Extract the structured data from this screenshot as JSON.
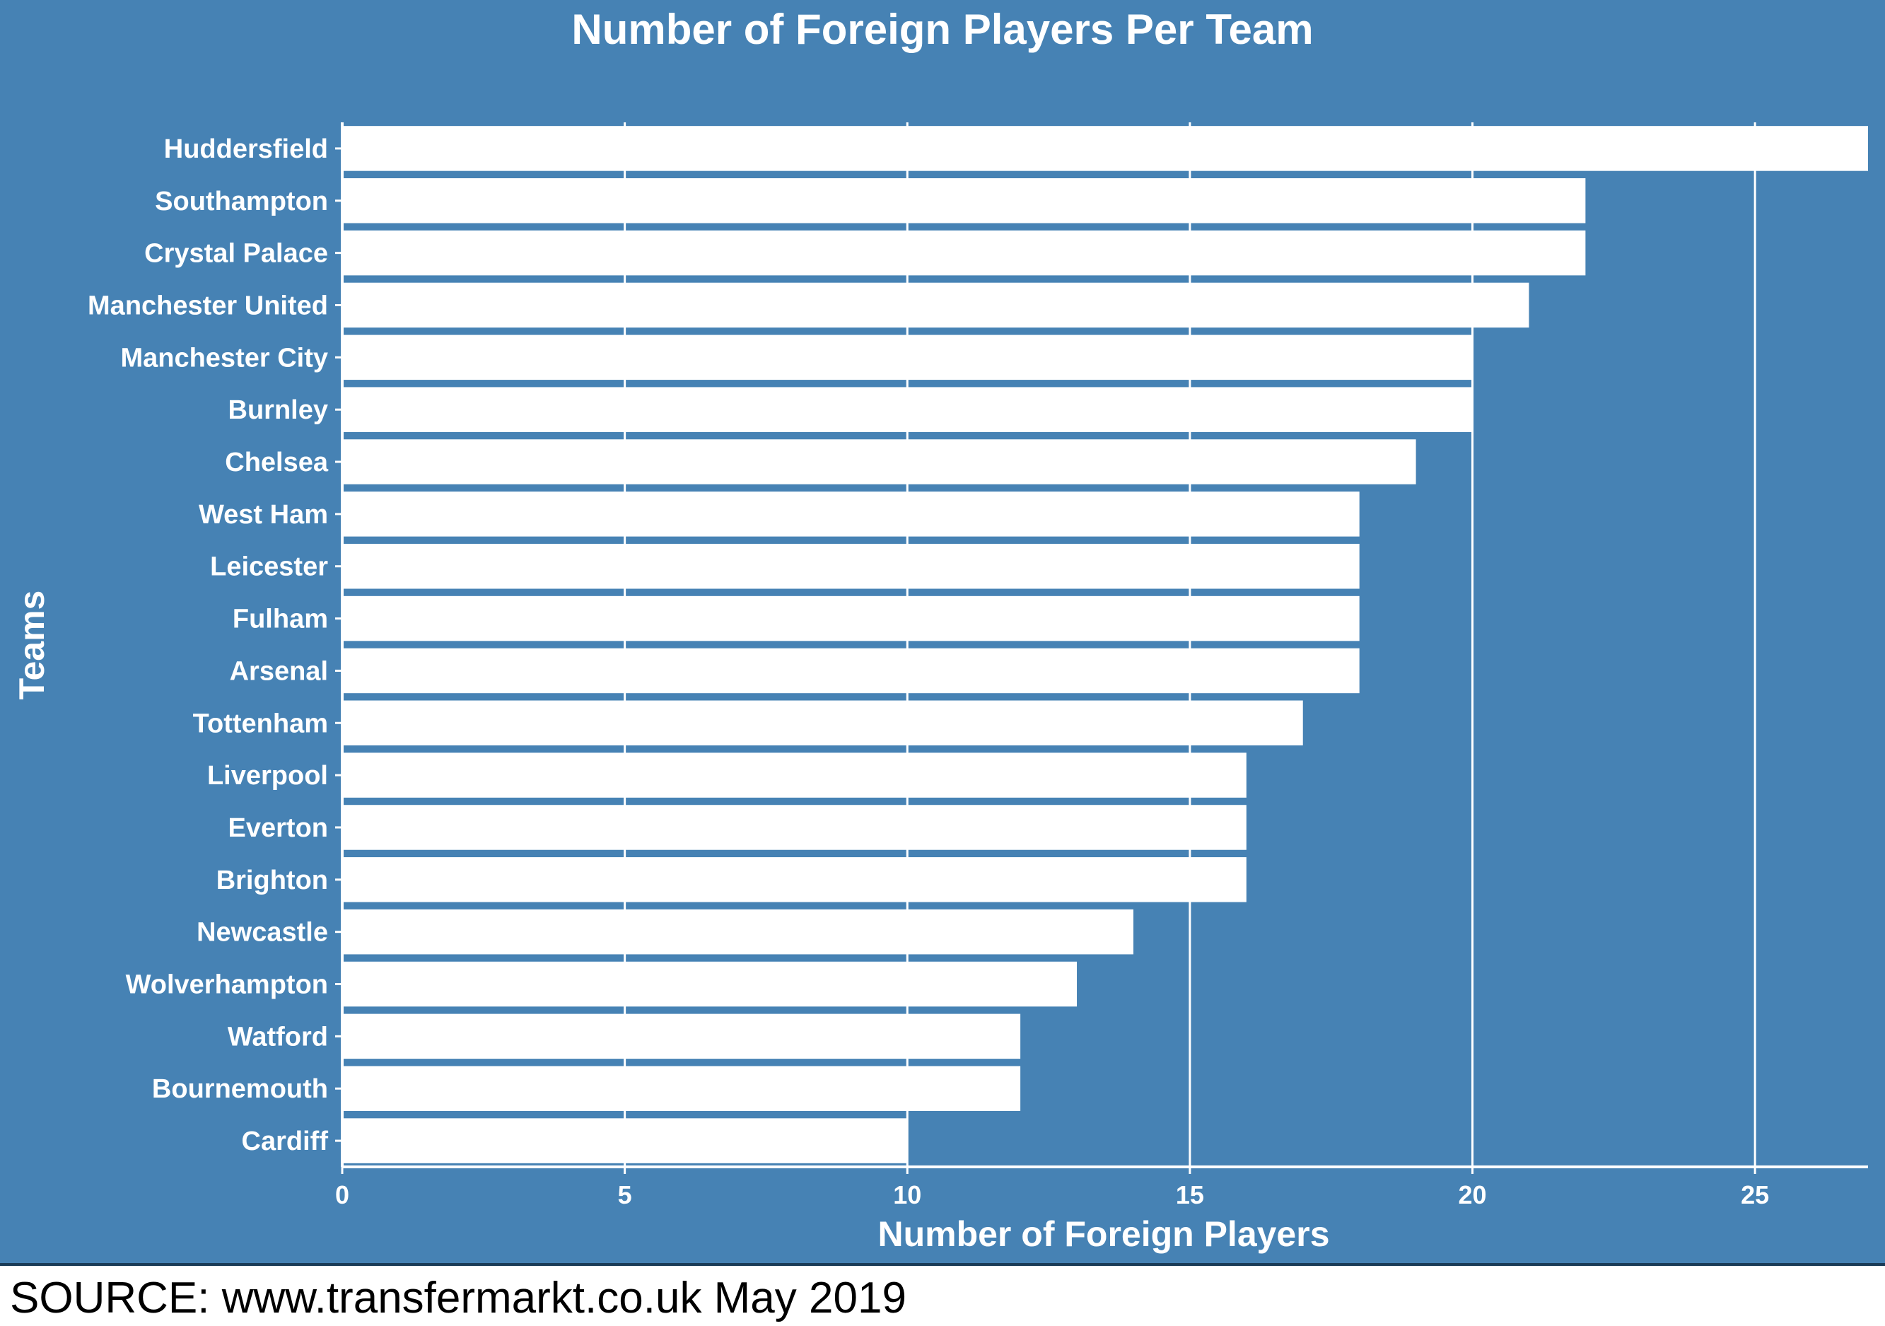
{
  "chart_data": {
    "type": "bar",
    "orientation": "horizontal",
    "title": "Number of Foreign Players Per Team",
    "xlabel": "Number of Foreign Players",
    "ylabel": "Teams",
    "categories": [
      "Huddersfield",
      "Southampton",
      "Crystal Palace",
      "Manchester United",
      "Manchester City",
      "Burnley",
      "Chelsea",
      "West Ham",
      "Leicester",
      "Fulham",
      "Arsenal",
      "Tottenham",
      "Liverpool",
      "Everton",
      "Brighton",
      "Newcastle",
      "Wolverhampton",
      "Watford",
      "Bournemouth",
      "Cardiff"
    ],
    "values": [
      27,
      22,
      22,
      21,
      20,
      20,
      19,
      18,
      18,
      18,
      18,
      17,
      16,
      16,
      16,
      14,
      13,
      12,
      12,
      10
    ],
    "xlim": [
      0,
      27
    ],
    "xticks": [
      0,
      5,
      10,
      15,
      20,
      25
    ],
    "grid": "vertical",
    "legend": "none",
    "colors": {
      "background": "#4682b4",
      "bar": "#ffffff",
      "text": "#ffffff"
    }
  },
  "source": "SOURCE: www.transfermarkt.co.uk May 2019"
}
